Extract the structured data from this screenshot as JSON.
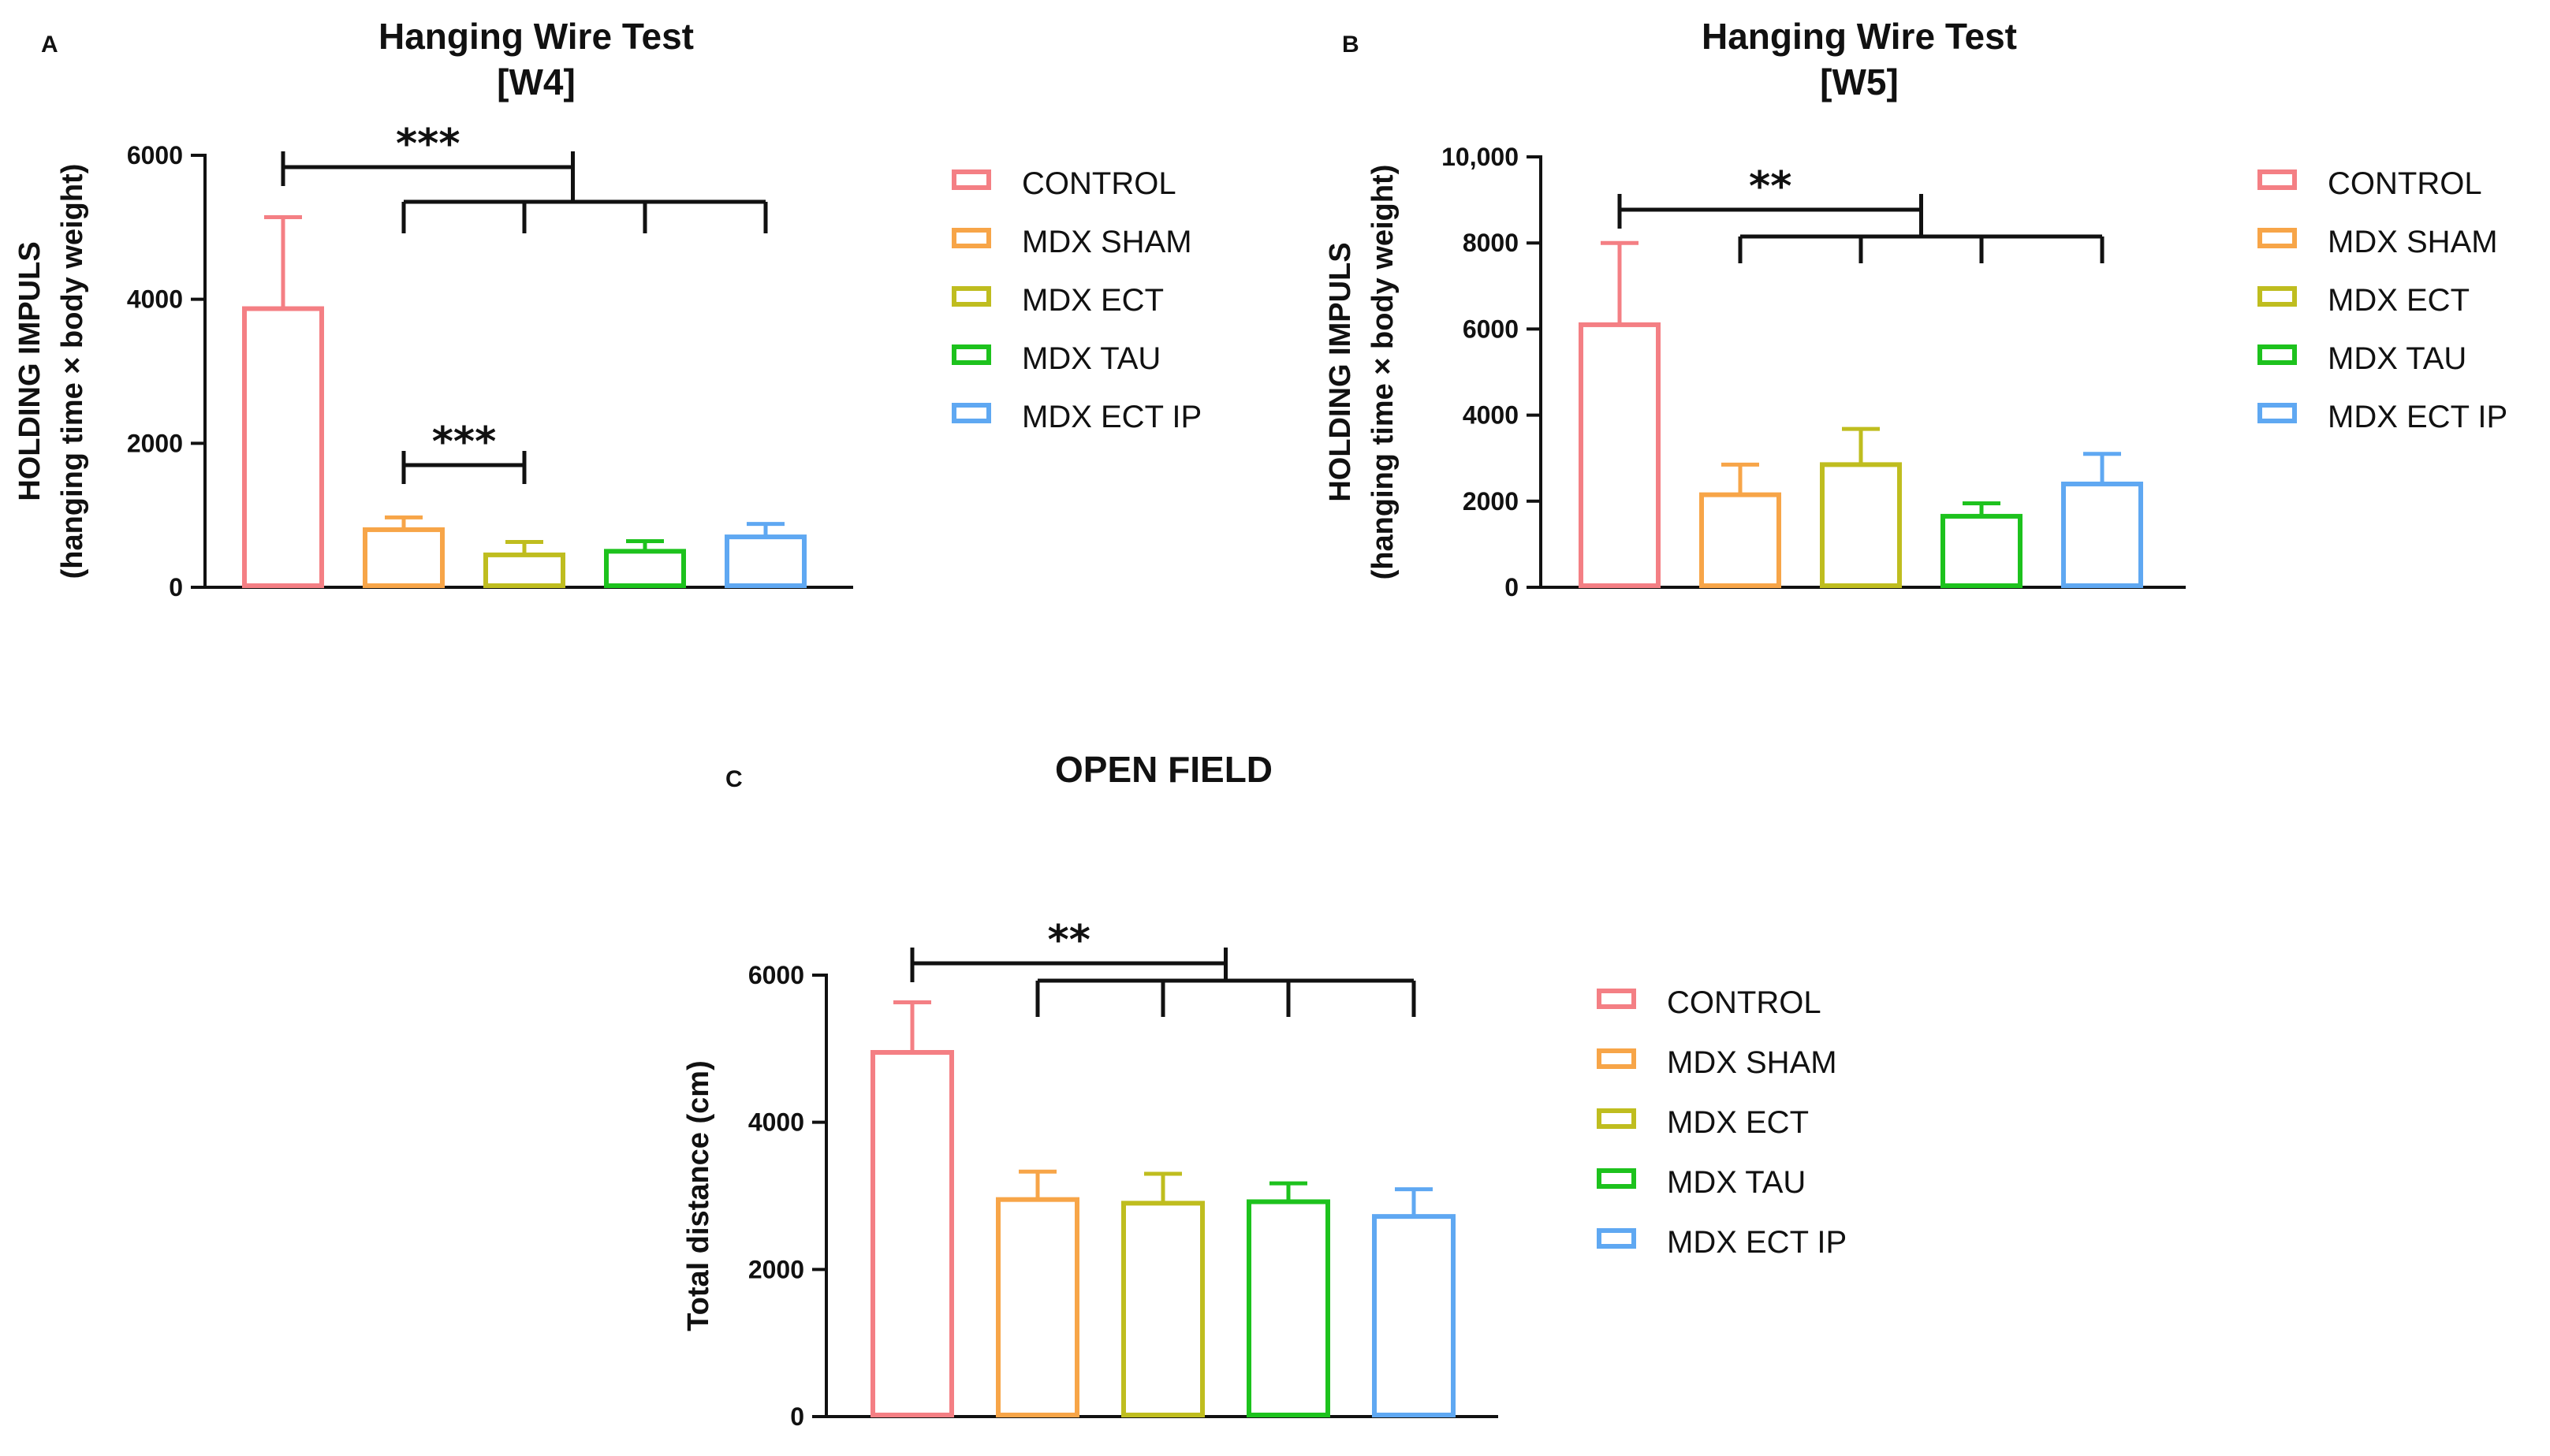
{
  "chart_data": [
    {
      "type": "bar",
      "panel_label": "A",
      "title": [
        "Hanging Wire Test",
        "[W4]"
      ],
      "ylabel": [
        "HOLDING IMPULS",
        "(hanging time × body weight)"
      ],
      "xlabel": "",
      "ylim": [
        0,
        6000
      ],
      "yticks": [
        "0",
        "2000",
        "4000",
        "6000"
      ],
      "categories": [
        "CONTROL",
        "MDX SHAM",
        "MDX ECT",
        "MDX TAU",
        "MDX ECT IP"
      ],
      "values": [
        3870,
        800,
        450,
        500,
        700
      ],
      "errors": [
        1270,
        170,
        180,
        140,
        180
      ],
      "legend": [
        "CONTROL",
        "MDX SHAM",
        "MDX ECT",
        "MDX TAU",
        "MDX ECT IP"
      ],
      "legend_position": "right",
      "significance": [
        {
          "label": "***",
          "from": "CONTROL",
          "to_group": [
            "MDX SHAM",
            "MDX ECT",
            "MDX TAU",
            "MDX ECT IP"
          ]
        },
        {
          "label": "***",
          "from": "MDX SHAM",
          "to": "MDX ECT"
        }
      ]
    },
    {
      "type": "bar",
      "panel_label": "B",
      "title": [
        "Hanging Wire Test",
        "[W5]"
      ],
      "ylabel": [
        "HOLDING IMPULS",
        "(hanging time × body weight)"
      ],
      "xlabel": "",
      "ylim": [
        0,
        10000
      ],
      "yticks": [
        "0",
        "2000",
        "4000",
        "6000",
        "8000",
        "10,000"
      ],
      "categories": [
        "CONTROL",
        "MDX SHAM",
        "MDX ECT",
        "MDX TAU",
        "MDX ECT IP"
      ],
      "values": [
        6100,
        2150,
        2850,
        1650,
        2400
      ],
      "errors": [
        1900,
        700,
        830,
        300,
        700
      ],
      "legend": [
        "CONTROL",
        "MDX SHAM",
        "MDX ECT",
        "MDX TAU",
        "MDX ECT IP"
      ],
      "legend_position": "right",
      "significance": [
        {
          "label": "**",
          "from": "CONTROL",
          "to_group": [
            "MDX SHAM",
            "MDX ECT",
            "MDX TAU",
            "MDX ECT IP"
          ]
        }
      ]
    },
    {
      "type": "bar",
      "panel_label": "C",
      "title": [
        "OPEN FIELD"
      ],
      "ylabel": [
        "Total distance (cm)"
      ],
      "xlabel": "",
      "ylim": [
        0,
        6000
      ],
      "yticks": [
        "0",
        "2000",
        "4000",
        "6000"
      ],
      "categories": [
        "CONTROL",
        "MDX SHAM",
        "MDX ECT",
        "MDX TAU",
        "MDX ECT IP"
      ],
      "values": [
        4950,
        2950,
        2900,
        2920,
        2720
      ],
      "errors": [
        680,
        380,
        400,
        250,
        370
      ],
      "legend": [
        "CONTROL",
        "MDX SHAM",
        "MDX ECT",
        "MDX TAU",
        "MDX ECT IP"
      ],
      "legend_position": "right",
      "significance": [
        {
          "label": "**",
          "from": "CONTROL",
          "to_group": [
            "MDX SHAM",
            "MDX ECT",
            "MDX TAU",
            "MDX ECT IP"
          ]
        }
      ]
    }
  ],
  "colors": [
    "#f47f84",
    "#f7a548",
    "#bfbd1f",
    "#1dc21d",
    "#5fa8f2"
  ],
  "axis_color": "#111111"
}
